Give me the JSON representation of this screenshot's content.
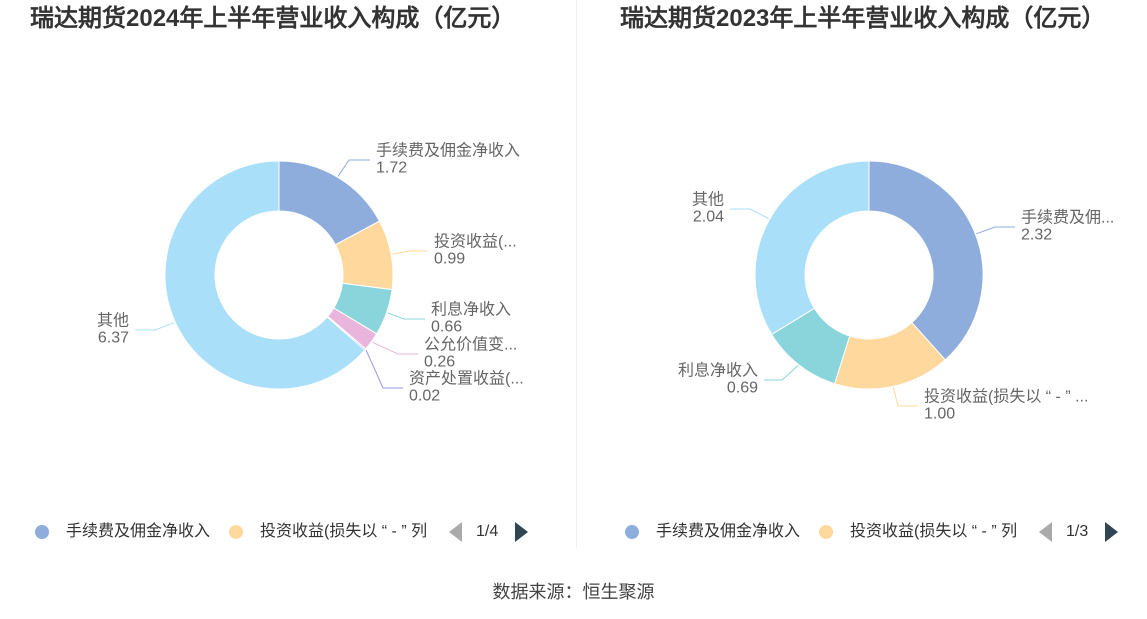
{
  "footer": {
    "source": "数据来源：恒生聚源"
  },
  "chart_data": [
    {
      "type": "pie",
      "donut": true,
      "title": "瑞达期货2024年上半年营业收入构成（亿元）",
      "categories": [
        "手续费及佣金净收入",
        "投资收益(...",
        "利息净收入",
        "公允价值变...",
        "资产处置收益(...",
        "其他"
      ],
      "values": [
        1.72,
        0.99,
        0.66,
        0.26,
        0.02,
        6.37
      ],
      "colors": [
        "#8eaddc",
        "#fed89c",
        "#89d5db",
        "#e9b5dc",
        "#9a98e4",
        "#a9dff9"
      ],
      "legend": {
        "placement": "bottom",
        "items": [
          "手续费及佣金净收入",
          "投资收益(损失以 “ - ” 列"
        ],
        "page": "1/4"
      }
    },
    {
      "type": "pie",
      "donut": true,
      "title": "瑞达期货2023年上半年营业收入构成（亿元）",
      "categories": [
        "手续费及佣...",
        "投资收益(损失以 “ - ” ...",
        "利息净收入",
        "其他"
      ],
      "values": [
        2.32,
        1.0,
        0.69,
        2.04
      ],
      "colors": [
        "#8eaddc",
        "#fed89c",
        "#89d5db",
        "#a9dff9"
      ],
      "legend": {
        "placement": "bottom",
        "items": [
          "手续费及佣金净收入",
          "投资收益(损失以 “ - ” 列"
        ],
        "page": "1/3"
      }
    }
  ]
}
